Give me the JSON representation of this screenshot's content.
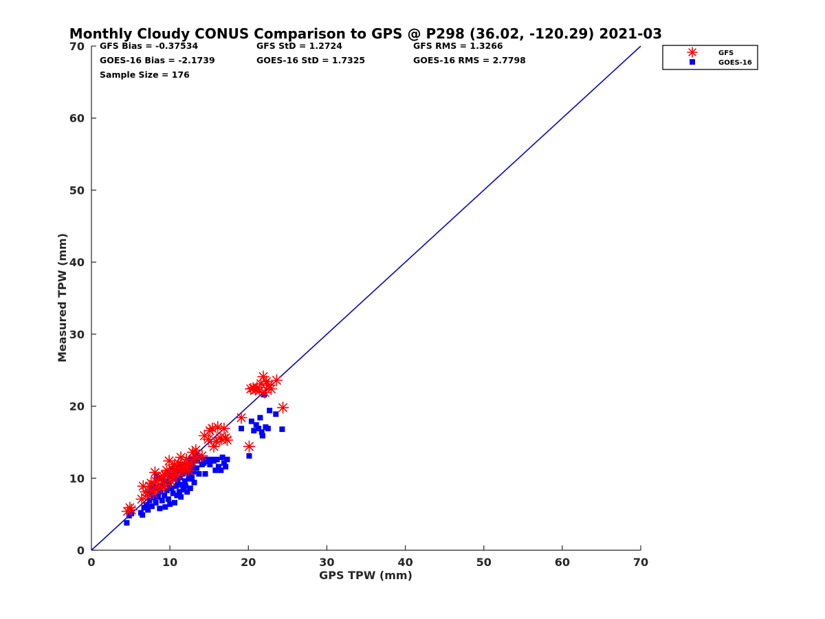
{
  "chart_data": {
    "type": "scatter",
    "title": "Monthly Cloudy CONUS Comparison to GPS @ P298 (36.02, -120.29) 2021-03",
    "xlabel": "GPS TPW (mm)",
    "ylabel": "Measured TPW (mm)",
    "xlim": [
      0,
      70
    ],
    "ylim": [
      0,
      70
    ],
    "xticks": [
      "0",
      "10",
      "20",
      "30",
      "40",
      "50",
      "60",
      "70"
    ],
    "yticks": [
      "0",
      "10",
      "20",
      "30",
      "40",
      "50",
      "60",
      "70"
    ],
    "grid": false,
    "legend_position": "top-right",
    "stats": [
      [
        "GFS Bias = -0.37534",
        "GFS StD = 1.2724",
        "GFS RMS = 1.3266"
      ],
      [
        "GOES-16 Bias = -2.1739",
        "GOES-16 StD = 1.7325",
        "GOES-16 RMS = 2.7798"
      ],
      [
        "Sample Size = 176"
      ]
    ],
    "reference_line": {
      "x": [
        0,
        70
      ],
      "y": [
        0,
        70
      ],
      "color": "#0000cc"
    },
    "series": [
      {
        "name": "GFS",
        "marker": "asterisk",
        "color": "#ff0000",
        "points": [
          [
            4.6,
            5.4
          ],
          [
            4.9,
            5.9
          ],
          [
            5.1,
            5.6
          ],
          [
            6.4,
            7.1
          ],
          [
            6.6,
            8.9
          ],
          [
            6.9,
            8.1
          ],
          [
            7.1,
            7.6
          ],
          [
            7.4,
            8.9
          ],
          [
            7.6,
            9.3
          ],
          [
            7.9,
            8.4
          ],
          [
            8.1,
            10.8
          ],
          [
            8.2,
            9.6
          ],
          [
            8.4,
            8.9
          ],
          [
            8.6,
            9.9
          ],
          [
            8.9,
            8.6
          ],
          [
            9.1,
            10.3
          ],
          [
            9.3,
            9.1
          ],
          [
            9.6,
            11.1
          ],
          [
            9.9,
            12.4
          ],
          [
            9.8,
            10.6
          ],
          [
            10.1,
            9.6
          ],
          [
            10.3,
            11.3
          ],
          [
            10.4,
            10.1
          ],
          [
            10.6,
            11.9
          ],
          [
            10.9,
            10.4
          ],
          [
            11.1,
            12.1
          ],
          [
            11.3,
            11.4
          ],
          [
            11.4,
            12.9
          ],
          [
            11.6,
            10.9
          ],
          [
            11.9,
            11.6
          ],
          [
            12.1,
            12.6
          ],
          [
            12.3,
            11.9
          ],
          [
            12.6,
            12.1
          ],
          [
            12.9,
            13.6
          ],
          [
            13.1,
            12.6
          ],
          [
            13.3,
            13.9
          ],
          [
            13.6,
            12.9
          ],
          [
            14.1,
            13.1
          ],
          [
            14.4,
            15.9
          ],
          [
            14.9,
            15.4
          ],
          [
            15.1,
            16.6
          ],
          [
            15.4,
            16.9
          ],
          [
            15.6,
            14.4
          ],
          [
            15.9,
            15.1
          ],
          [
            16.1,
            17.1
          ],
          [
            16.4,
            15.6
          ],
          [
            16.6,
            15.4
          ],
          [
            16.9,
            16.9
          ],
          [
            17.1,
            15.6
          ],
          [
            17.3,
            15.3
          ],
          [
            19.1,
            18.4
          ],
          [
            20.1,
            14.4
          ],
          [
            20.3,
            22.4
          ],
          [
            20.6,
            22.5
          ],
          [
            20.9,
            22.3
          ],
          [
            21.1,
            22.6
          ],
          [
            21.4,
            22.1
          ],
          [
            21.6,
            23.1
          ],
          [
            21.9,
            24.1
          ],
          [
            22.1,
            21.9
          ],
          [
            22.3,
            23.4
          ],
          [
            22.6,
            22.9
          ],
          [
            22.9,
            22.4
          ],
          [
            23.6,
            23.6
          ],
          [
            24.4,
            19.8
          ],
          [
            10.6,
            10.9
          ],
          [
            9.4,
            10.4
          ],
          [
            12.4,
            11.1
          ],
          [
            7.9,
            7.9
          ],
          [
            11.6,
            11.6
          ]
        ]
      },
      {
        "name": "GOES-16",
        "marker": "square",
        "color": "#0000ff",
        "points": [
          [
            4.5,
            3.8
          ],
          [
            4.8,
            4.8
          ],
          [
            5.1,
            5.1
          ],
          [
            6.3,
            5.2
          ],
          [
            6.5,
            4.9
          ],
          [
            6.7,
            5.9
          ],
          [
            7.0,
            6.3
          ],
          [
            7.2,
            5.6
          ],
          [
            7.4,
            6.9
          ],
          [
            7.5,
            7.9
          ],
          [
            7.7,
            6.1
          ],
          [
            7.9,
            7.3
          ],
          [
            8.1,
            8.6
          ],
          [
            8.2,
            6.6
          ],
          [
            8.3,
            10.3
          ],
          [
            8.5,
            7.4
          ],
          [
            8.7,
            5.8
          ],
          [
            8.8,
            8.1
          ],
          [
            9.0,
            6.9
          ],
          [
            9.1,
            8.9
          ],
          [
            9.3,
            7.6
          ],
          [
            9.4,
            6.0
          ],
          [
            9.5,
            9.6
          ],
          [
            9.6,
            8.3
          ],
          [
            9.8,
            7.1
          ],
          [
            9.9,
            9.1
          ],
          [
            10.0,
            6.4
          ],
          [
            10.1,
            10.4
          ],
          [
            10.2,
            8.6
          ],
          [
            10.3,
            11.3
          ],
          [
            10.4,
            7.9
          ],
          [
            10.5,
            9.9
          ],
          [
            10.6,
            6.6
          ],
          [
            10.7,
            10.9
          ],
          [
            10.8,
            8.9
          ],
          [
            10.9,
            7.6
          ],
          [
            11.0,
            9.4
          ],
          [
            11.1,
            11.6
          ],
          [
            11.2,
            8.1
          ],
          [
            11.3,
            10.1
          ],
          [
            11.4,
            7.4
          ],
          [
            11.5,
            9.1
          ],
          [
            11.6,
            10.6
          ],
          [
            11.7,
            8.4
          ],
          [
            11.8,
            11.9
          ],
          [
            11.9,
            9.6
          ],
          [
            12.0,
            8.9
          ],
          [
            12.1,
            10.9
          ],
          [
            12.2,
            8.1
          ],
          [
            12.3,
            11.1
          ],
          [
            12.4,
            9.9
          ],
          [
            12.5,
            10.4
          ],
          [
            12.6,
            8.6
          ],
          [
            12.7,
            11.6
          ],
          [
            12.8,
            10.1
          ],
          [
            12.9,
            12.1
          ],
          [
            13.0,
            10.9
          ],
          [
            13.1,
            9.4
          ],
          [
            13.2,
            13.1
          ],
          [
            13.4,
            11.4
          ],
          [
            13.5,
            12.4
          ],
          [
            13.7,
            10.6
          ],
          [
            13.9,
            12.9
          ],
          [
            14.1,
            11.9
          ],
          [
            14.3,
            12.1
          ],
          [
            14.5,
            10.6
          ],
          [
            14.6,
            12.6
          ],
          [
            14.9,
            12.3
          ],
          [
            15.1,
            11.9
          ],
          [
            15.3,
            12.6
          ],
          [
            15.6,
            12.4
          ],
          [
            15.8,
            11.1
          ],
          [
            16.0,
            12.6
          ],
          [
            16.2,
            11.6
          ],
          [
            16.5,
            11.1
          ],
          [
            16.7,
            12.9
          ],
          [
            16.9,
            12.1
          ],
          [
            17.1,
            11.6
          ],
          [
            17.3,
            12.6
          ],
          [
            19.1,
            16.9
          ],
          [
            20.1,
            13.1
          ],
          [
            20.4,
            17.9
          ],
          [
            20.7,
            16.6
          ],
          [
            21.0,
            17.4
          ],
          [
            21.3,
            16.9
          ],
          [
            21.5,
            18.4
          ],
          [
            21.7,
            16.4
          ],
          [
            21.8,
            15.9
          ],
          [
            22.0,
            21.6
          ],
          [
            22.2,
            17.1
          ],
          [
            22.5,
            16.9
          ],
          [
            22.7,
            19.4
          ],
          [
            23.5,
            18.9
          ],
          [
            24.3,
            16.8
          ],
          [
            7.8,
            8.8
          ],
          [
            8.9,
            9.9
          ],
          [
            9.6,
            10.6
          ],
          [
            10.9,
            11.1
          ],
          [
            11.4,
            11.4
          ],
          [
            12.6,
            12.6
          ]
        ]
      }
    ]
  }
}
